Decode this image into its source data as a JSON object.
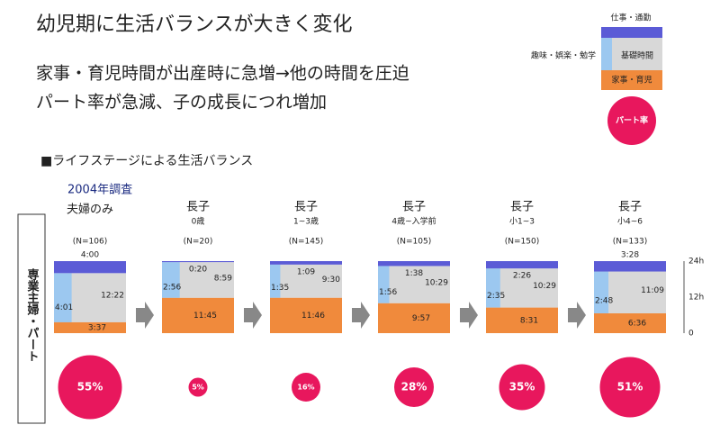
{
  "title": "幼児期に生活バランスが大きく変化",
  "bullets": [
    "家事・育児時間が出産時に急増→他の時間を圧迫",
    "パート率が急減、子の成長につれ増加"
  ],
  "legend": {
    "work": "仕事・通勤",
    "hobby": "趣味・娯楽・勉学",
    "basic": "基礎時間",
    "house": "家事・育児",
    "part_rate": "パート率"
  },
  "section_title": "■ライフステージによる生活バランス",
  "survey": "2004年調査",
  "side_label": "専業主婦・パート",
  "axis_labels": [
    "24h",
    "12h",
    "0"
  ],
  "panels": [
    {
      "heading": [
        "夫婦のみ"
      ],
      "n": "(N=106)",
      "work": "4:00",
      "hobby": "4:01",
      "basic": "12:22",
      "house": "3:37",
      "part_rate": {
        "value": 55,
        "label": "55%"
      }
    },
    {
      "heading": [
        "長子",
        "0歳"
      ],
      "n": "(N=20)",
      "work": "0:20",
      "hobby": "2:56",
      "basic": "8:59",
      "house": "11:45",
      "part_rate": {
        "value": 5,
        "label": "5%"
      }
    },
    {
      "heading": [
        "長子",
        "1~3歳"
      ],
      "n": "(N=145)",
      "work": "1:09",
      "hobby": "1:35",
      "basic": "9:30",
      "house": "11:46",
      "part_rate": {
        "value": 16,
        "label": "16%"
      }
    },
    {
      "heading": [
        "長子",
        "4歳~入学前"
      ],
      "n": "(N=105)",
      "work": "1:38",
      "hobby": "1:56",
      "basic": "10:29",
      "house": "9:57",
      "part_rate": {
        "value": 28,
        "label": "28%"
      }
    },
    {
      "heading": [
        "長子",
        "小1~3"
      ],
      "n": "(N=150)",
      "work": "2:26",
      "hobby": "2:35",
      "basic": "10:29",
      "house": "8:31",
      "part_rate": {
        "value": 35,
        "label": "35%"
      }
    },
    {
      "heading": [
        "長子",
        "小4~6"
      ],
      "n": "(N=133)",
      "work": "3:28",
      "hobby": "2:48",
      "basic": "11:09",
      "house": "6:36",
      "part_rate": {
        "value": 51,
        "label": "51%"
      }
    }
  ]
}
